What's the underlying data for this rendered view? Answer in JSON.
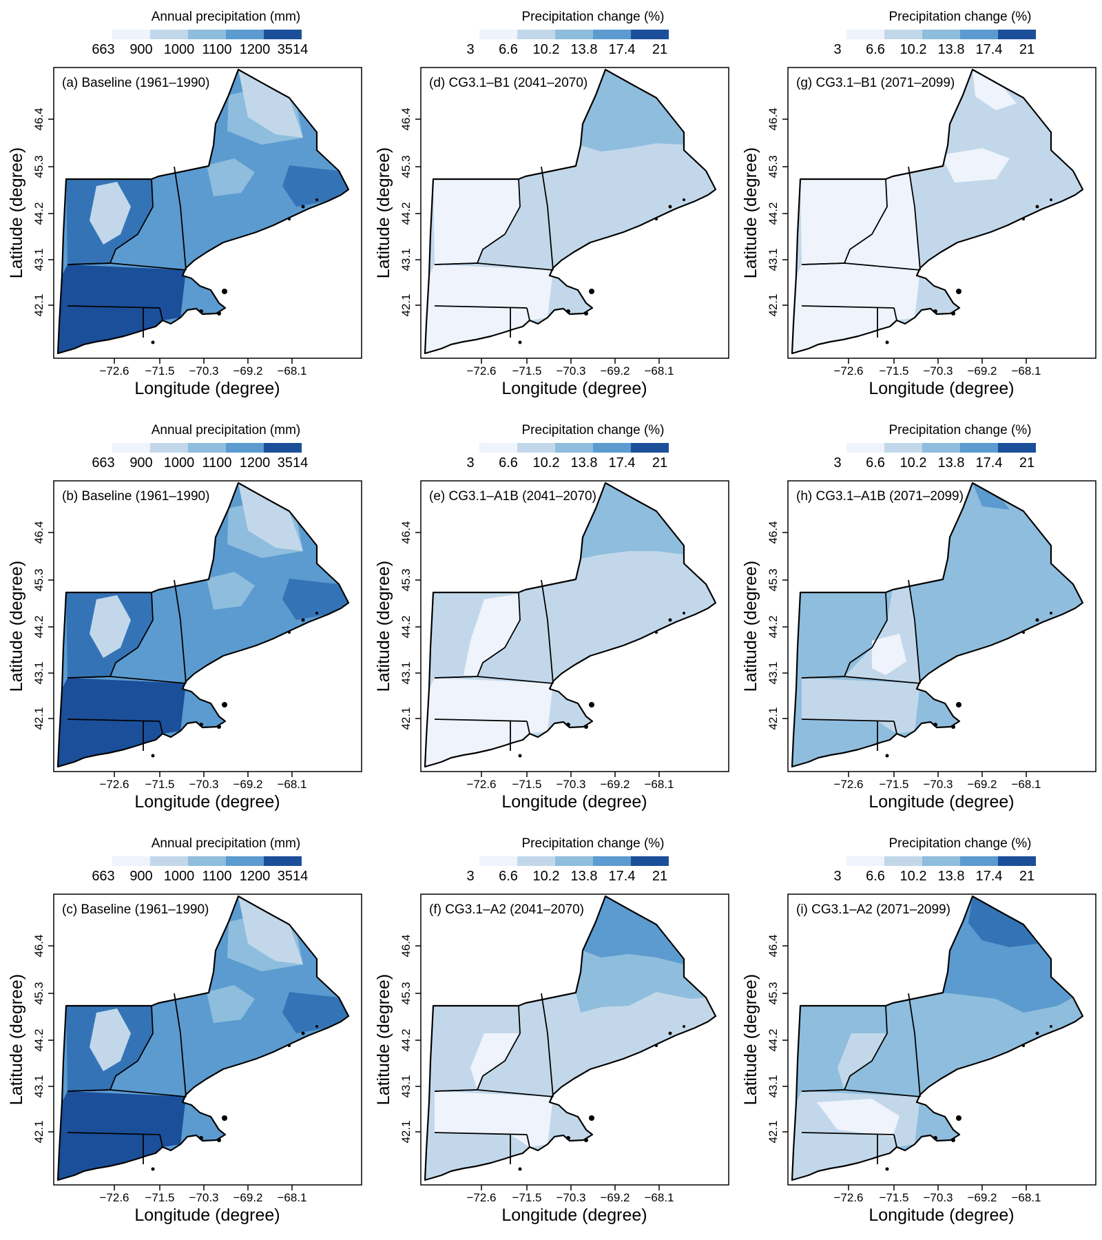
{
  "colors": {
    "scale": [
      "#eef3fc",
      "#c2d8ea",
      "#8fbddd",
      "#5b9bd0",
      "#3474b6",
      "#1b4f9a"
    ],
    "land_outline": "#000000"
  },
  "axes": {
    "xlabel": "Longitude (degree)",
    "ylabel": "Latitude (degree)",
    "xticks": [
      "−72.6",
      "−71.5",
      "−70.3",
      "−69.2",
      "−68.1"
    ],
    "yticks": [
      "46.4",
      "45.3",
      "44.2",
      "43.1",
      "42.1"
    ]
  },
  "legends": {
    "baseline": {
      "title": "Annual precipitation (mm)",
      "labels": [
        "663",
        "900",
        "1000",
        "1100",
        "1200",
        "3514"
      ]
    },
    "change": {
      "title": "Precipitation change (%)",
      "labels": [
        "3",
        "6.6",
        "10.2",
        "13.8",
        "17.4",
        "21"
      ]
    }
  },
  "panels": [
    {
      "label": "(a) Baseline (1961–1990)",
      "legend": "baseline",
      "scenario": "baseline"
    },
    {
      "label": "(d) CG3.1–B1 (2041–2070)",
      "legend": "change",
      "scenario": "b1_mid"
    },
    {
      "label": "(g) CG3.1–B1 (2071–2099)",
      "legend": "change",
      "scenario": "b1_late"
    },
    {
      "label": "(b) Baseline (1961–1990)",
      "legend": "baseline",
      "scenario": "baseline"
    },
    {
      "label": "(e) CG3.1–A1B (2041–2070)",
      "legend": "change",
      "scenario": "a1b_mid"
    },
    {
      "label": "(h) CG3.1–A1B (2071–2099)",
      "legend": "change",
      "scenario": "a1b_late"
    },
    {
      "label": "(c) Baseline (1961–1990)",
      "legend": "baseline",
      "scenario": "baseline"
    },
    {
      "label": "(f) CG3.1–A2 (2041–2070)",
      "legend": "change",
      "scenario": "a2_mid"
    },
    {
      "label": "(i) CG3.1–A2 (2071–2099)",
      "legend": "change",
      "scenario": "a2_late"
    }
  ]
}
